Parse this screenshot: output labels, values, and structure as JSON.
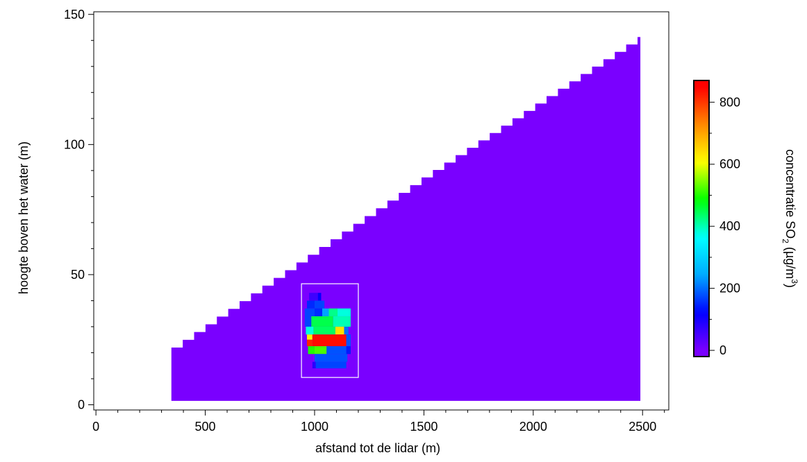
{
  "chart_data": {
    "type": "heatmap",
    "title": "",
    "xlabel": "afstand tot de lidar (m)",
    "ylabel": "hoogte boven het water (m)",
    "xlim": [
      -10,
      2620
    ],
    "ylim": [
      -2,
      151
    ],
    "xticks": [
      0,
      500,
      1000,
      1500,
      2000,
      2500
    ],
    "yticks": [
      0,
      50,
      100,
      150
    ],
    "grid": false,
    "background_color": "#7a00ff",
    "scan_region": {
      "x_start": 345,
      "x_end": 2490,
      "y_bottom": 1.5,
      "top_edge": [
        [
          345,
          22
        ],
        [
          1500,
          88
        ],
        [
          2490,
          142
        ]
      ]
    },
    "cells": [
      {
        "x": [
          975,
          1015
        ],
        "y": [
          40,
          43
        ],
        "value": 60
      },
      {
        "x": [
          1015,
          1030
        ],
        "y": [
          40,
          43
        ],
        "value": 120
      },
      {
        "x": [
          965,
          1000
        ],
        "y": [
          37,
          40
        ],
        "value": 150
      },
      {
        "x": [
          1000,
          1045
        ],
        "y": [
          37,
          40
        ],
        "value": 170
      },
      {
        "x": [
          955,
          1000
        ],
        "y": [
          34,
          37
        ],
        "value": 170
      },
      {
        "x": [
          1000,
          1035
        ],
        "y": [
          34,
          37
        ],
        "value": 150
      },
      {
        "x": [
          1035,
          1065
        ],
        "y": [
          34,
          37
        ],
        "value": 240
      },
      {
        "x": [
          1065,
          1105
        ],
        "y": [
          34,
          37
        ],
        "value": 420
      },
      {
        "x": [
          1105,
          1165
        ],
        "y": [
          34,
          37
        ],
        "value": 380
      },
      {
        "x": [
          955,
          985
        ],
        "y": [
          30,
          34
        ],
        "value": 170
      },
      {
        "x": [
          985,
          1085
        ],
        "y": [
          30,
          34
        ],
        "value": 450
      },
      {
        "x": [
          1085,
          1165
        ],
        "y": [
          30,
          34
        ],
        "value": 400
      },
      {
        "x": [
          960,
          995
        ],
        "y": [
          27,
          30
        ],
        "value": 380
      },
      {
        "x": [
          995,
          1095
        ],
        "y": [
          27,
          30
        ],
        "value": 440
      },
      {
        "x": [
          1095,
          1135
        ],
        "y": [
          27,
          30
        ],
        "value": 640
      },
      {
        "x": [
          1135,
          1155
        ],
        "y": [
          27,
          30
        ],
        "value": 200
      },
      {
        "x": [
          965,
          990
        ],
        "y": [
          25,
          27
        ],
        "value": 620
      },
      {
        "x": [
          990,
          1145
        ],
        "y": [
          22.5,
          27
        ],
        "value": 840
      },
      {
        "x": [
          965,
          990
        ],
        "y": [
          22.5,
          25
        ],
        "value": 820
      },
      {
        "x": [
          1145,
          1165
        ],
        "y": [
          22.5,
          27
        ],
        "value": 180
      },
      {
        "x": [
          970,
          1000
        ],
        "y": [
          19.5,
          22.5
        ],
        "value": 500
      },
      {
        "x": [
          1000,
          1055
        ],
        "y": [
          19.5,
          22.5
        ],
        "value": 520
      },
      {
        "x": [
          1055,
          1145
        ],
        "y": [
          19.5,
          22.5
        ],
        "value": 180
      },
      {
        "x": [
          1145,
          1165
        ],
        "y": [
          19.5,
          22.5
        ],
        "value": 140
      },
      {
        "x": [
          1000,
          1150
        ],
        "y": [
          16.5,
          19.5
        ],
        "value": 180
      },
      {
        "x": [
          1005,
          1145
        ],
        "y": [
          14,
          16.5
        ],
        "value": 170
      },
      {
        "x": [
          990,
          1005
        ],
        "y": [
          14,
          16.5
        ],
        "value": 80
      }
    ],
    "box": {
      "x": [
        940,
        1200
      ],
      "y": [
        10.5,
        46.5
      ],
      "color": "#ffffff"
    },
    "colorbar": {
      "label_main": "concentratie SO",
      "label_sub": "2",
      "label_unit": " (µg/m",
      "label_sup": "3",
      "label_close": ")",
      "range": [
        -20,
        870
      ],
      "ticks": [
        0,
        200,
        400,
        600,
        800
      ],
      "tick_labels": [
        "0",
        "200",
        "400",
        "600",
        "800"
      ],
      "colormap": [
        "#7a00ff",
        "#0000ff",
        "#00aaff",
        "#00ffff",
        "#00ff00",
        "#ffff00",
        "#ff8800",
        "#ff0000"
      ]
    }
  }
}
